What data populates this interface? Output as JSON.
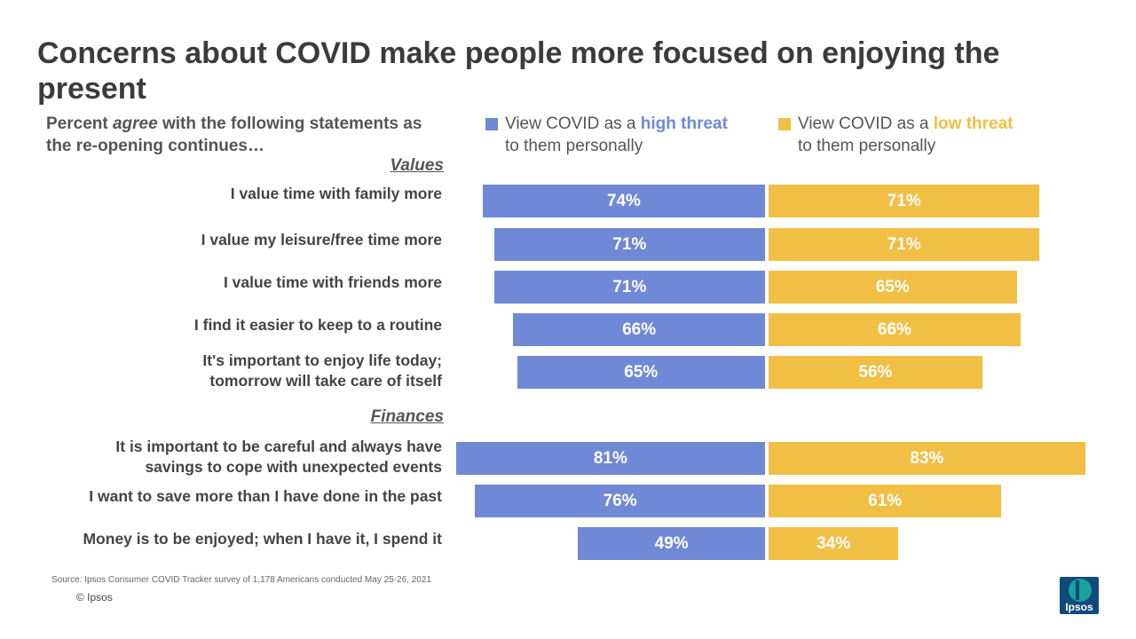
{
  "title": "Concerns about COVID make people more focused on enjoying the present",
  "subtitle": {
    "pre": "Percent ",
    "emph": "agree",
    "post": " with the following statements as the re-opening continues…"
  },
  "legend": {
    "high": {
      "pre": "View COVID as a ",
      "emph": "high threat",
      "line2": "to them personally",
      "color": "#7089d6"
    },
    "low": {
      "pre": "View COVID as a ",
      "emph": "low threat",
      "line2": "to them personally",
      "color": "#f2bf45"
    }
  },
  "sections": {
    "values": "Values",
    "finances": "Finances"
  },
  "chart_data": {
    "type": "bar",
    "orientation": "horizontal-diverging",
    "categories": [
      "I value time with family more",
      "I value my leisure/free time more",
      "I value time with friends more",
      "I find it easier to keep to a routine",
      "It's important to enjoy life today; tomorrow will take care of itself",
      "It is important to be careful and always have savings to cope with unexpected events",
      "I want to save more than I have done in the past",
      "Money is to be enjoyed; when I have it, I spend it"
    ],
    "category_lines": [
      [
        "I value time with family more"
      ],
      [
        "I value my leisure/free time more"
      ],
      [
        "I value time with friends more"
      ],
      [
        "I find it easier to keep to a routine"
      ],
      [
        "It's important to enjoy life today;",
        "tomorrow will take care of itself"
      ],
      [
        "It is important to be careful and always have",
        "savings to cope with unexpected events"
      ],
      [
        "I want to save more than I have done in the past"
      ],
      [
        "Money is to be enjoyed; when I have it, I spend it"
      ]
    ],
    "groups": [
      {
        "name": "Values",
        "indices": [
          0,
          1,
          2,
          3,
          4
        ]
      },
      {
        "name": "Finances",
        "indices": [
          5,
          6,
          7
        ]
      }
    ],
    "series": [
      {
        "name": "View COVID as a high threat to them personally",
        "values": [
          74,
          71,
          71,
          66,
          65,
          81,
          76,
          49
        ],
        "color": "#7089d6"
      },
      {
        "name": "View COVID as a low threat to them personally",
        "values": [
          71,
          71,
          65,
          66,
          56,
          83,
          61,
          34
        ],
        "color": "#f2bf45"
      }
    ],
    "value_suffix": "%",
    "xlim": [
      0,
      100
    ]
  },
  "source": "Source: Ipsos Consumer COVID Tracker survey of 1,178 Americans conducted May 25-26, 2021",
  "copyright": "© Ipsos",
  "logo_text": "Ipsos"
}
